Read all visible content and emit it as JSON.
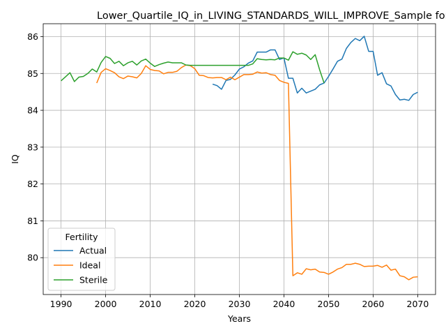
{
  "chart_data": {
    "type": "line",
    "title": "Lower_Quartile_IQ_in_LIVING_STANDARDS_WILL_IMPROVE_Sample for Bla",
    "xlabel": "Years",
    "ylabel": "IQ",
    "xlim": [
      1986,
      2074
    ],
    "ylim": [
      79.0,
      86.35
    ],
    "xticks": [
      1990,
      2000,
      2010,
      2020,
      2030,
      2040,
      2050,
      2060,
      2070
    ],
    "yticks": [
      80,
      81,
      82,
      83,
      84,
      85,
      86
    ],
    "grid": true,
    "legend": {
      "title": "Fertility",
      "position": "lower-left"
    },
    "series": [
      {
        "name": "Actual",
        "color": "#1f77b4",
        "points": [
          [
            2024,
            84.71
          ],
          [
            2025,
            84.67
          ],
          [
            2026,
            84.57
          ],
          [
            2027,
            84.81
          ],
          [
            2028,
            84.84
          ],
          [
            2029,
            84.96
          ],
          [
            2030,
            85.12
          ],
          [
            2031,
            85.18
          ],
          [
            2032,
            85.28
          ],
          [
            2033,
            85.34
          ],
          [
            2034,
            85.58
          ],
          [
            2035,
            85.58
          ],
          [
            2036,
            85.58
          ],
          [
            2037,
            85.64
          ],
          [
            2038,
            85.64
          ],
          [
            2039,
            85.38
          ],
          [
            2040,
            85.42
          ],
          [
            2041,
            84.87
          ],
          [
            2042,
            84.87
          ],
          [
            2043,
            84.47
          ],
          [
            2044,
            84.6
          ],
          [
            2045,
            84.47
          ],
          [
            2046,
            84.52
          ],
          [
            2047,
            84.57
          ],
          [
            2048,
            84.69
          ],
          [
            2049,
            84.74
          ],
          [
            2050,
            84.92
          ],
          [
            2051,
            85.12
          ],
          [
            2052,
            85.33
          ],
          [
            2053,
            85.39
          ],
          [
            2054,
            85.68
          ],
          [
            2055,
            85.84
          ],
          [
            2056,
            85.95
          ],
          [
            2057,
            85.89
          ],
          [
            2058,
            86.01
          ],
          [
            2059,
            85.6
          ],
          [
            2060,
            85.6
          ],
          [
            2061,
            84.95
          ],
          [
            2062,
            85.02
          ],
          [
            2063,
            84.72
          ],
          [
            2064,
            84.66
          ],
          [
            2065,
            84.43
          ],
          [
            2066,
            84.28
          ],
          [
            2067,
            84.3
          ],
          [
            2068,
            84.27
          ],
          [
            2069,
            84.43
          ],
          [
            2070,
            84.49
          ]
        ]
      },
      {
        "name": "Ideal",
        "color": "#ff7f0e",
        "points": [
          [
            1998,
            84.74
          ],
          [
            1999,
            85.03
          ],
          [
            2000,
            85.13
          ],
          [
            2001,
            85.08
          ],
          [
            2002,
            85.02
          ],
          [
            2003,
            84.91
          ],
          [
            2004,
            84.86
          ],
          [
            2005,
            84.93
          ],
          [
            2006,
            84.91
          ],
          [
            2007,
            84.88
          ],
          [
            2008,
            85.0
          ],
          [
            2009,
            85.21
          ],
          [
            2010,
            85.11
          ],
          [
            2011,
            85.08
          ],
          [
            2012,
            85.07
          ],
          [
            2013,
            84.99
          ],
          [
            2014,
            85.03
          ],
          [
            2015,
            85.03
          ],
          [
            2016,
            85.06
          ],
          [
            2017,
            85.16
          ],
          [
            2018,
            85.23
          ],
          [
            2019,
            85.21
          ],
          [
            2020,
            85.13
          ],
          [
            2021,
            84.95
          ],
          [
            2022,
            84.94
          ],
          [
            2023,
            84.89
          ],
          [
            2024,
            84.88
          ],
          [
            2025,
            84.89
          ],
          [
            2026,
            84.89
          ],
          [
            2027,
            84.83
          ],
          [
            2028,
            84.9
          ],
          [
            2029,
            84.83
          ],
          [
            2030,
            84.9
          ],
          [
            2031,
            84.97
          ],
          [
            2032,
            84.97
          ],
          [
            2033,
            84.98
          ],
          [
            2034,
            85.04
          ],
          [
            2035,
            85.01
          ],
          [
            2036,
            85.02
          ],
          [
            2037,
            84.97
          ],
          [
            2038,
            84.95
          ],
          [
            2039,
            84.81
          ],
          [
            2040,
            84.76
          ],
          [
            2041,
            84.73
          ],
          [
            2042,
            79.51
          ],
          [
            2043,
            79.59
          ],
          [
            2044,
            79.55
          ],
          [
            2045,
            79.7
          ],
          [
            2046,
            79.67
          ],
          [
            2047,
            79.69
          ],
          [
            2048,
            79.61
          ],
          [
            2049,
            79.6
          ],
          [
            2050,
            79.55
          ],
          [
            2051,
            79.61
          ],
          [
            2052,
            79.69
          ],
          [
            2053,
            79.73
          ],
          [
            2054,
            79.82
          ],
          [
            2055,
            79.82
          ],
          [
            2056,
            79.85
          ],
          [
            2057,
            79.82
          ],
          [
            2058,
            79.76
          ],
          [
            2059,
            79.77
          ],
          [
            2060,
            79.77
          ],
          [
            2061,
            79.79
          ],
          [
            2062,
            79.74
          ],
          [
            2063,
            79.8
          ],
          [
            2064,
            79.66
          ],
          [
            2065,
            79.69
          ],
          [
            2066,
            79.51
          ],
          [
            2067,
            79.48
          ],
          [
            2068,
            79.4
          ],
          [
            2069,
            79.47
          ],
          [
            2070,
            79.48
          ]
        ]
      },
      {
        "name": "Sterile",
        "color": "#2ca02c",
        "points": [
          [
            1990,
            84.8
          ],
          [
            1991,
            84.91
          ],
          [
            1992,
            85.02
          ],
          [
            1993,
            84.78
          ],
          [
            1994,
            84.9
          ],
          [
            1995,
            84.92
          ],
          [
            1996,
            85.0
          ],
          [
            1997,
            85.12
          ],
          [
            1998,
            85.04
          ],
          [
            1999,
            85.3
          ],
          [
            2000,
            85.46
          ],
          [
            2001,
            85.41
          ],
          [
            2002,
            85.27
          ],
          [
            2003,
            85.33
          ],
          [
            2004,
            85.21
          ],
          [
            2005,
            85.29
          ],
          [
            2006,
            85.33
          ],
          [
            2007,
            85.23
          ],
          [
            2008,
            85.34
          ],
          [
            2009,
            85.39
          ],
          [
            2010,
            85.28
          ],
          [
            2011,
            85.19
          ],
          [
            2012,
            85.24
          ],
          [
            2013,
            85.28
          ],
          [
            2014,
            85.31
          ],
          [
            2015,
            85.29
          ],
          [
            2016,
            85.29
          ],
          [
            2017,
            85.29
          ],
          [
            2018,
            85.23
          ],
          [
            2019,
            85.22
          ],
          [
            2020,
            85.22
          ],
          [
            2021,
            85.22
          ],
          [
            2022,
            85.22
          ],
          [
            2023,
            85.22
          ],
          [
            2024,
            85.22
          ],
          [
            2025,
            85.22
          ],
          [
            2026,
            85.22
          ],
          [
            2027,
            85.22
          ],
          [
            2028,
            85.22
          ],
          [
            2029,
            85.22
          ],
          [
            2030,
            85.22
          ],
          [
            2031,
            85.22
          ],
          [
            2032,
            85.22
          ],
          [
            2033,
            85.26
          ],
          [
            2034,
            85.4
          ],
          [
            2035,
            85.38
          ],
          [
            2036,
            85.37
          ],
          [
            2037,
            85.38
          ],
          [
            2038,
            85.37
          ],
          [
            2039,
            85.42
          ],
          [
            2040,
            85.42
          ],
          [
            2041,
            85.36
          ],
          [
            2042,
            85.59
          ],
          [
            2043,
            85.52
          ],
          [
            2044,
            85.55
          ],
          [
            2045,
            85.5
          ],
          [
            2046,
            85.38
          ],
          [
            2047,
            85.51
          ],
          [
            2048,
            85.1
          ],
          [
            2049,
            84.74
          ]
        ]
      }
    ]
  }
}
